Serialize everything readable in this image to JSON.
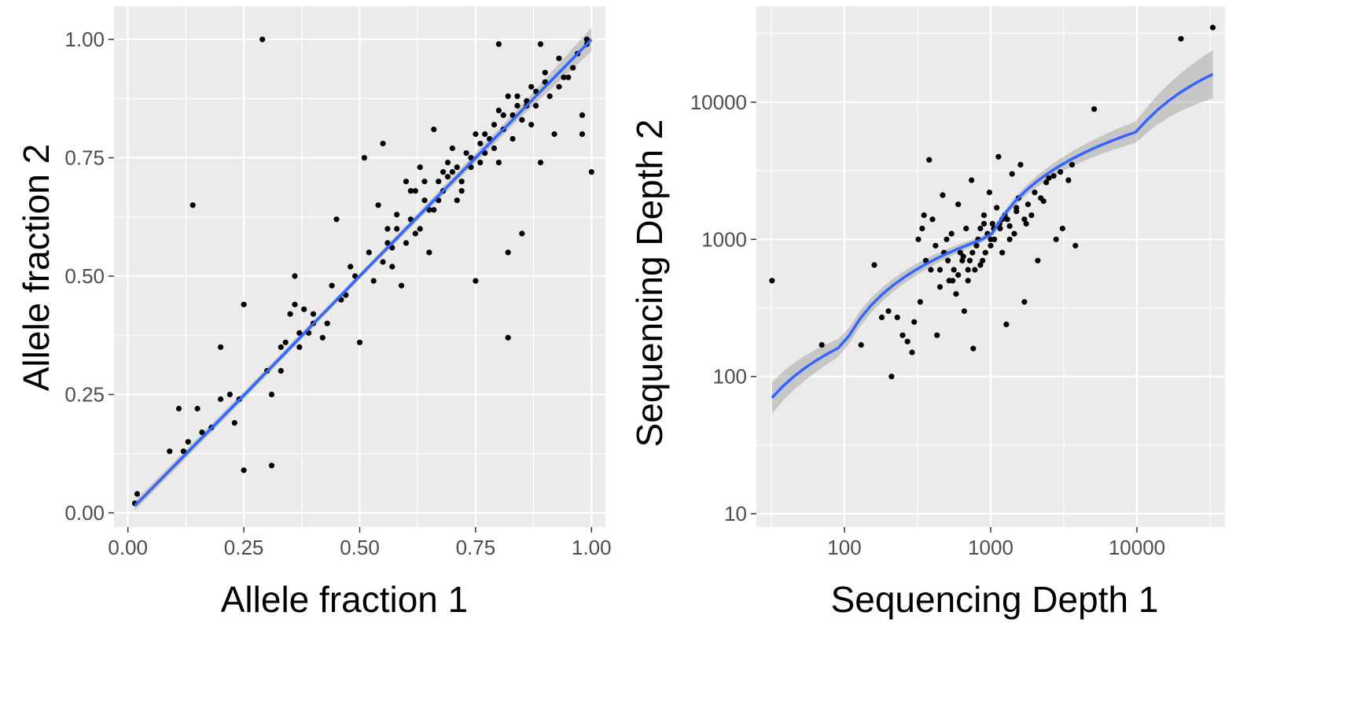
{
  "chart_data": [
    {
      "type": "scatter",
      "xlabel": "Allele fraction 1",
      "ylabel": "Allele fraction 2",
      "xscale": "linear",
      "yscale": "linear",
      "xlim": [
        -0.03,
        1.03
      ],
      "ylim": [
        -0.03,
        1.07
      ],
      "xticks": [
        0,
        0.25,
        0.5,
        0.75,
        1
      ],
      "xtick_labels": [
        "0.00",
        "0.25",
        "0.50",
        "0.75",
        "1.00"
      ],
      "yticks": [
        0,
        0.25,
        0.5,
        0.75,
        1
      ],
      "ytick_labels": [
        "0.00",
        "0.25",
        "0.50",
        "0.75",
        "1.00"
      ],
      "grid": true,
      "colors": {
        "points": "#000000",
        "fit": "#3366ff",
        "ribbon": "#999999",
        "panel": "#ebebeb",
        "grid": "#ffffff"
      },
      "points": [
        [
          0.015,
          0.02
        ],
        [
          0.02,
          0.04
        ],
        [
          0.09,
          0.13
        ],
        [
          0.11,
          0.22
        ],
        [
          0.12,
          0.13
        ],
        [
          0.13,
          0.15
        ],
        [
          0.14,
          0.65
        ],
        [
          0.15,
          0.22
        ],
        [
          0.16,
          0.17
        ],
        [
          0.18,
          0.18
        ],
        [
          0.2,
          0.24
        ],
        [
          0.2,
          0.35
        ],
        [
          0.22,
          0.25
        ],
        [
          0.23,
          0.19
        ],
        [
          0.24,
          0.24
        ],
        [
          0.25,
          0.09
        ],
        [
          0.25,
          0.44
        ],
        [
          0.29,
          1.0
        ],
        [
          0.3,
          0.3
        ],
        [
          0.31,
          0.1
        ],
        [
          0.31,
          0.25
        ],
        [
          0.33,
          0.35
        ],
        [
          0.33,
          0.3
        ],
        [
          0.34,
          0.36
        ],
        [
          0.35,
          0.42
        ],
        [
          0.36,
          0.5
        ],
        [
          0.36,
          0.44
        ],
        [
          0.37,
          0.35
        ],
        [
          0.37,
          0.38
        ],
        [
          0.38,
          0.43
        ],
        [
          0.39,
          0.38
        ],
        [
          0.4,
          0.42
        ],
        [
          0.4,
          0.4
        ],
        [
          0.42,
          0.37
        ],
        [
          0.43,
          0.4
        ],
        [
          0.44,
          0.48
        ],
        [
          0.45,
          0.62
        ],
        [
          0.46,
          0.45
        ],
        [
          0.47,
          0.46
        ],
        [
          0.48,
          0.52
        ],
        [
          0.49,
          0.5
        ],
        [
          0.5,
          0.36
        ],
        [
          0.51,
          0.75
        ],
        [
          0.52,
          0.55
        ],
        [
          0.53,
          0.49
        ],
        [
          0.54,
          0.65
        ],
        [
          0.55,
          0.78
        ],
        [
          0.56,
          0.57
        ],
        [
          0.57,
          0.56
        ],
        [
          0.58,
          0.6
        ],
        [
          0.59,
          0.48
        ],
        [
          0.6,
          0.7
        ],
        [
          0.61,
          0.62
        ],
        [
          0.62,
          0.59
        ],
        [
          0.63,
          0.73
        ],
        [
          0.64,
          0.66
        ],
        [
          0.65,
          0.55
        ],
        [
          0.66,
          0.81
        ],
        [
          0.67,
          0.7
        ],
        [
          0.68,
          0.68
        ],
        [
          0.69,
          0.74
        ],
        [
          0.7,
          0.72
        ],
        [
          0.71,
          0.66
        ],
        [
          0.72,
          0.7
        ],
        [
          0.73,
          0.76
        ],
        [
          0.74,
          0.75
        ],
        [
          0.75,
          0.49
        ],
        [
          0.75,
          0.8
        ],
        [
          0.76,
          0.78
        ],
        [
          0.77,
          0.76
        ],
        [
          0.78,
          0.79
        ],
        [
          0.79,
          0.82
        ],
        [
          0.8,
          0.99
        ],
        [
          0.8,
          0.85
        ],
        [
          0.81,
          0.81
        ],
        [
          0.82,
          0.37
        ],
        [
          0.82,
          0.55
        ],
        [
          0.82,
          0.88
        ],
        [
          0.83,
          0.84
        ],
        [
          0.84,
          0.86
        ],
        [
          0.85,
          0.59
        ],
        [
          0.85,
          0.83
        ],
        [
          0.86,
          0.87
        ],
        [
          0.87,
          0.82
        ],
        [
          0.88,
          0.89
        ],
        [
          0.89,
          0.74
        ],
        [
          0.89,
          0.99
        ],
        [
          0.9,
          0.91
        ],
        [
          0.91,
          0.88
        ],
        [
          0.92,
          0.8
        ],
        [
          0.93,
          0.96
        ],
        [
          0.94,
          0.92
        ],
        [
          0.95,
          0.92
        ],
        [
          0.96,
          0.94
        ],
        [
          0.97,
          0.97
        ],
        [
          0.98,
          0.84
        ],
        [
          0.98,
          0.8
        ],
        [
          0.99,
          1.0
        ],
        [
          0.99,
          0.99
        ],
        [
          1.0,
          0.72
        ],
        [
          0.62,
          0.68
        ],
        [
          0.64,
          0.7
        ],
        [
          0.66,
          0.64
        ],
        [
          0.68,
          0.72
        ],
        [
          0.7,
          0.77
        ],
        [
          0.71,
          0.73
        ],
        [
          0.72,
          0.68
        ],
        [
          0.74,
          0.73
        ],
        [
          0.76,
          0.74
        ],
        [
          0.77,
          0.8
        ],
        [
          0.79,
          0.77
        ],
        [
          0.8,
          0.74
        ],
        [
          0.81,
          0.84
        ],
        [
          0.83,
          0.79
        ],
        [
          0.84,
          0.88
        ],
        [
          0.86,
          0.86
        ],
        [
          0.87,
          0.9
        ],
        [
          0.88,
          0.86
        ],
        [
          0.9,
          0.93
        ],
        [
          0.93,
          0.9
        ],
        [
          0.58,
          0.63
        ],
        [
          0.6,
          0.57
        ],
        [
          0.61,
          0.68
        ],
        [
          0.63,
          0.6
        ],
        [
          0.65,
          0.64
        ],
        [
          0.67,
          0.66
        ],
        [
          0.69,
          0.71
        ],
        [
          0.56,
          0.6
        ],
        [
          0.55,
          0.53
        ],
        [
          0.57,
          0.52
        ]
      ],
      "fit_line": [
        [
          0.015,
          0.015
        ],
        [
          0.25,
          0.248
        ],
        [
          0.5,
          0.5
        ],
        [
          0.75,
          0.75
        ],
        [
          1.0,
          1.0
        ]
      ],
      "ribbon_halfwidth": [
        [
          0.015,
          0.01
        ],
        [
          0.5,
          0.006
        ],
        [
          0.85,
          0.012
        ],
        [
          1.0,
          0.025
        ]
      ]
    },
    {
      "type": "scatter",
      "xlabel": "Sequencing Depth 1",
      "ylabel": "Sequencing Depth 2",
      "xscale": "log10",
      "yscale": "log10",
      "xlim": [
        25,
        40000
      ],
      "ylim": [
        8,
        50000
      ],
      "xticks": [
        100,
        1000,
        10000
      ],
      "xtick_labels": [
        "100",
        "1000",
        "10000"
      ],
      "yticks": [
        10,
        100,
        1000,
        10000
      ],
      "ytick_labels": [
        "10",
        "100",
        "1000",
        "10000"
      ],
      "grid": true,
      "colors": {
        "points": "#000000",
        "fit": "#3366ff",
        "ribbon": "#999999",
        "panel": "#ebebeb",
        "grid": "#ffffff"
      },
      "points": [
        [
          32,
          500
        ],
        [
          70,
          170
        ],
        [
          130,
          170
        ],
        [
          160,
          650
        ],
        [
          180,
          270
        ],
        [
          200,
          300
        ],
        [
          210,
          100
        ],
        [
          230,
          270
        ],
        [
          250,
          200
        ],
        [
          270,
          180
        ],
        [
          290,
          150
        ],
        [
          300,
          250
        ],
        [
          320,
          1000
        ],
        [
          330,
          350
        ],
        [
          340,
          1200
        ],
        [
          350,
          1500
        ],
        [
          360,
          700
        ],
        [
          380,
          3800
        ],
        [
          390,
          600
        ],
        [
          400,
          1400
        ],
        [
          420,
          900
        ],
        [
          430,
          200
        ],
        [
          450,
          600
        ],
        [
          470,
          2100
        ],
        [
          480,
          800
        ],
        [
          500,
          1000
        ],
        [
          510,
          700
        ],
        [
          520,
          500
        ],
        [
          540,
          1100
        ],
        [
          560,
          600
        ],
        [
          580,
          400
        ],
        [
          600,
          1800
        ],
        [
          620,
          800
        ],
        [
          640,
          700
        ],
        [
          660,
          300
        ],
        [
          680,
          1200
        ],
        [
          700,
          500
        ],
        [
          720,
          700
        ],
        [
          740,
          2700
        ],
        [
          760,
          160
        ],
        [
          780,
          600
        ],
        [
          800,
          900
        ],
        [
          820,
          1000
        ],
        [
          850,
          1200
        ],
        [
          880,
          700
        ],
        [
          900,
          1500
        ],
        [
          920,
          800
        ],
        [
          950,
          1100
        ],
        [
          980,
          2200
        ],
        [
          1000,
          900
        ],
        [
          1030,
          1300
        ],
        [
          1060,
          1000
        ],
        [
          1100,
          1700
        ],
        [
          1130,
          4000
        ],
        [
          1160,
          1200
        ],
        [
          1200,
          800
        ],
        [
          1250,
          1500
        ],
        [
          1280,
          240
        ],
        [
          1300,
          1400
        ],
        [
          1350,
          1000
        ],
        [
          1400,
          3000
        ],
        [
          1450,
          1100
        ],
        [
          1500,
          1600
        ],
        [
          1550,
          2000
        ],
        [
          1600,
          3500
        ],
        [
          1700,
          350
        ],
        [
          1750,
          1300
        ],
        [
          1800,
          1800
        ],
        [
          1900,
          1500
        ],
        [
          2000,
          2200
        ],
        [
          2100,
          700
        ],
        [
          2200,
          2000
        ],
        [
          2300,
          1900
        ],
        [
          2400,
          2600
        ],
        [
          2500,
          2800
        ],
        [
          2700,
          2900
        ],
        [
          2800,
          1000
        ],
        [
          3000,
          3100
        ],
        [
          3100,
          1200
        ],
        [
          3400,
          2700
        ],
        [
          3600,
          3500
        ],
        [
          3800,
          900
        ],
        [
          5100,
          8900
        ],
        [
          20000,
          29000
        ],
        [
          33000,
          35000
        ],
        [
          600,
          550
        ],
        [
          700,
          600
        ],
        [
          850,
          650
        ],
        [
          1000,
          1000
        ],
        [
          1150,
          1300
        ],
        [
          450,
          450
        ],
        [
          550,
          500
        ],
        [
          650,
          750
        ],
        [
          750,
          800
        ],
        [
          900,
          1300
        ],
        [
          1050,
          1200
        ],
        [
          1200,
          1400
        ],
        [
          1350,
          1250
        ],
        [
          1500,
          1700
        ],
        [
          1700,
          1400
        ]
      ],
      "fit_line": [
        [
          32,
          70
        ],
        [
          100,
          170
        ],
        [
          1000,
          1050
        ],
        [
          10000,
          6100
        ],
        [
          33000,
          16000
        ]
      ],
      "ribbon_ratio": [
        [
          32,
          1.3
        ],
        [
          100,
          1.15
        ],
        [
          1000,
          1.05
        ],
        [
          10000,
          1.2
        ],
        [
          33000,
          1.5
        ]
      ]
    }
  ]
}
